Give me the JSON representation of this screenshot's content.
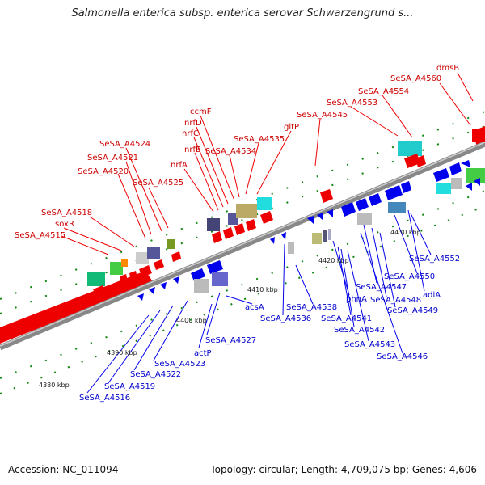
{
  "title": "Salmonella enterica subsp. enterica serovar Schwarzengrund s...",
  "footer": {
    "accession": "Accession: NC_011094",
    "summary": "Topology: circular; Length: 4,709,075 bp; Genes: 4,606"
  },
  "colors": {
    "forward_gene": "#ee0000",
    "reverse_gene": "#0000ee",
    "forward_label": "#cc0000",
    "reverse_label": "#0000cc",
    "backbone": "#888888",
    "tick": "#118811"
  },
  "ruler_labels": [
    "4380 kbp",
    "4390 kbp",
    "4400 kbp",
    "4410 kbp",
    "4420 kbp",
    "4430 kbp"
  ],
  "top_genes": [
    "dmsB",
    "SeSA_A4560",
    "SeSA_A4554",
    "SeSA_A4553",
    "SeSA_A4545",
    "gltP",
    "SeSA_A4535",
    "SeSA_A4534",
    "ccmF",
    "nrfD",
    "nrfC",
    "nrfB",
    "nrfA",
    "SeSA_A4525",
    "SeSA_A4524",
    "SeSA_A4521",
    "SeSA_A4520",
    "SeSA_A4518",
    "soxR",
    "SeSA_A4515"
  ],
  "bottom_genes": [
    "SeSA_A4552",
    "SeSA_A4550",
    "adiA",
    "SeSA_A4547",
    "SeSA_A4548",
    "SeSA_A4549",
    "phnA",
    "SeSA_A4538",
    "SeSA_A4541",
    "SeSA_A4542",
    "SeSA_A4543",
    "SeSA_A4546",
    "SeSA_A4536",
    "acsA",
    "SeSA_A4527",
    "actP",
    "SeSA_A4523",
    "SeSA_A4522",
    "SeSA_A4519",
    "SeSA_A4516"
  ]
}
